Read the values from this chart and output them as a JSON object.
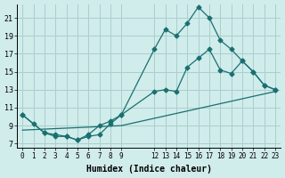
{
  "bg_color": "#d0eceb",
  "grid_color": "#aacfcd",
  "line_color": "#1a7070",
  "xlabel": "Humidex (Indice chaleur)",
  "xlim": [
    -0.5,
    23.5
  ],
  "ylim": [
    6.5,
    22.5
  ],
  "xticks": [
    0,
    1,
    2,
    3,
    4,
    5,
    6,
    7,
    8,
    9,
    12,
    13,
    14,
    15,
    16,
    17,
    18,
    19,
    20,
    21,
    22,
    23
  ],
  "yticks": [
    7,
    9,
    11,
    13,
    15,
    17,
    19,
    21
  ],
  "line1_x": [
    0,
    1,
    2,
    3,
    4,
    5,
    6,
    7,
    8,
    9,
    12,
    13,
    14,
    15,
    16,
    17,
    18,
    19,
    20,
    21,
    22,
    23
  ],
  "line1_y": [
    10.2,
    9.2,
    8.2,
    8.0,
    7.8,
    7.4,
    7.8,
    8.0,
    9.2,
    10.2,
    17.5,
    19.7,
    19.0,
    20.4,
    22.2,
    21.0,
    18.5,
    17.5,
    16.2,
    15.0,
    13.5,
    13.0
  ],
  "line2_x": [
    0,
    2,
    3,
    4,
    5,
    6,
    7,
    8,
    9,
    12,
    13,
    14,
    15,
    16,
    17,
    18,
    19,
    20,
    21,
    22,
    23
  ],
  "line2_y": [
    10.2,
    8.2,
    7.8,
    7.8,
    7.4,
    8.0,
    9.0,
    9.5,
    10.2,
    12.8,
    13.0,
    12.8,
    15.5,
    16.5,
    17.5,
    15.2,
    14.8,
    16.2,
    15.0,
    13.5,
    13.0
  ],
  "line3_x": [
    0,
    9,
    23
  ],
  "line3_y": [
    8.5,
    9.0,
    12.8
  ],
  "marker_style": "D",
  "marker_size": 2.5,
  "lw": 0.9
}
